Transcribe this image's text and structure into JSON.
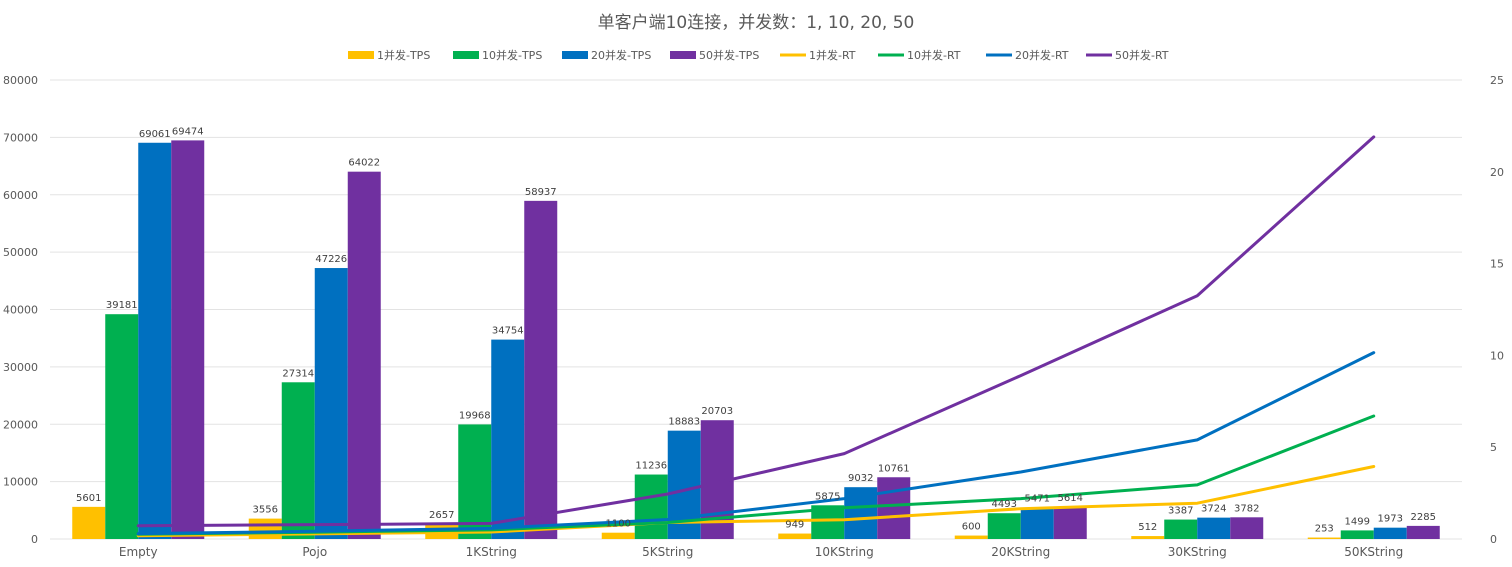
{
  "chart_data": {
    "type": "bar",
    "title": "单客户端10连接，并发数：1, 10, 20, 50",
    "categories": [
      "Empty",
      "Pojo",
      "1KString",
      "5KString",
      "10KString",
      "20KString",
      "30KString",
      "50KString"
    ],
    "y_left": {
      "ylim": [
        0,
        80000
      ],
      "ticks": [
        0,
        10000,
        20000,
        30000,
        40000,
        50000,
        60000,
        70000,
        80000
      ]
    },
    "y_right": {
      "ylim": [
        0,
        25
      ],
      "ticks": [
        0,
        5,
        10,
        15,
        20,
        25
      ]
    },
    "grid": true,
    "legend_position": "top",
    "bar_series": [
      {
        "name": "1并发-TPS",
        "color": "#ffc000",
        "values": [
          5601,
          3556,
          2657,
          1100,
          949,
          600,
          512,
          253
        ]
      },
      {
        "name": "10并发-TPS",
        "color": "#00b050",
        "values": [
          39181,
          27314,
          19968,
          11236,
          5875,
          4493,
          3387,
          1499
        ]
      },
      {
        "name": "20并发-TPS",
        "color": "#0070c0",
        "values": [
          69061,
          47226,
          34754,
          18883,
          9032,
          5471,
          3724,
          1973
        ]
      },
      {
        "name": "50并发-TPS",
        "color": "#7030a0",
        "values": [
          69474,
          64022,
          58937,
          20703,
          10761,
          5614,
          3782,
          2285
        ]
      }
    ],
    "line_series": [
      {
        "name": "1并发-RT",
        "color": "#ffc000",
        "axis": "right",
        "values": [
          0.18,
          0.28,
          0.38,
          0.9,
          1.05,
          1.65,
          1.95,
          3.95
        ]
      },
      {
        "name": "10并发-RT",
        "color": "#00b050",
        "axis": "right",
        "values": [
          0.26,
          0.37,
          0.5,
          0.9,
          1.7,
          2.2,
          2.95,
          6.7
        ]
      },
      {
        "name": "20并发-RT",
        "color": "#0070c0",
        "axis": "right",
        "values": [
          0.29,
          0.42,
          0.58,
          1.06,
          2.2,
          3.65,
          5.4,
          10.15
        ]
      },
      {
        "name": "50并发-RT",
        "color": "#7030a0",
        "axis": "right",
        "values": [
          0.72,
          0.78,
          0.85,
          2.45,
          4.65,
          8.9,
          13.25,
          21.9
        ]
      }
    ]
  }
}
